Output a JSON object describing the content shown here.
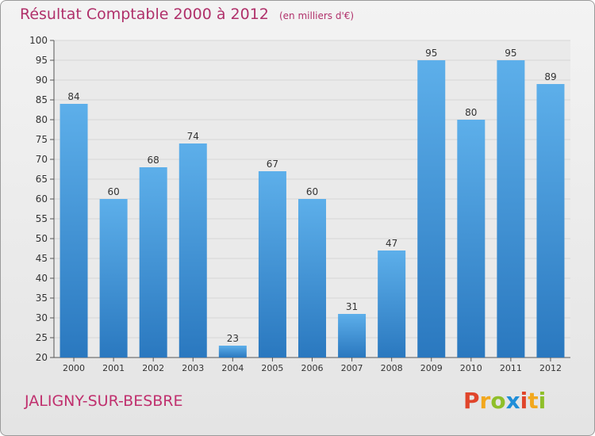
{
  "chart_data": {
    "type": "bar",
    "title": "Résultat Comptable 2000 à 2012",
    "unit": "(en milliers d'€)",
    "categories": [
      "2000",
      "2001",
      "2002",
      "2003",
      "2004",
      "2005",
      "2006",
      "2007",
      "2008",
      "2009",
      "2010",
      "2011",
      "2012"
    ],
    "values": [
      84,
      60,
      68,
      74,
      23,
      67,
      60,
      31,
      47,
      95,
      80,
      95,
      89
    ],
    "ylim": [
      20,
      100
    ],
    "yticks": [
      20,
      25,
      30,
      35,
      40,
      45,
      50,
      55,
      60,
      65,
      70,
      75,
      80,
      85,
      90,
      95,
      100
    ],
    "xlabel": "",
    "ylabel": "",
    "grid": true,
    "bar_color": "#3b8fd6"
  },
  "commune": "JALIGNY-SUR-BESBRE",
  "logo": {
    "letters": [
      "P",
      "r",
      "o",
      "x",
      "i",
      "t",
      "i"
    ],
    "colors": [
      "#e0452b",
      "#f2a81e",
      "#8fbf2a",
      "#1f8ed8",
      "#e0452b",
      "#f2a81e",
      "#8fbf2a"
    ]
  }
}
